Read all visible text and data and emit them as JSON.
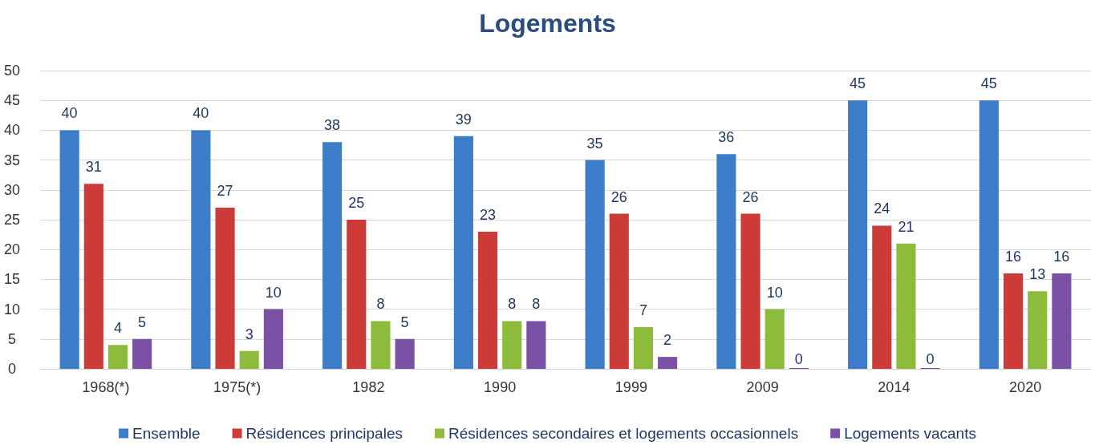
{
  "chart_data": {
    "type": "bar",
    "title": "Logements",
    "categories": [
      "1968(*)",
      "1975(*)",
      "1982",
      "1990",
      "1999",
      "2009",
      "2014",
      "2020"
    ],
    "series": [
      {
        "name": "Ensemble",
        "color": "#3d7cc9",
        "values": [
          40,
          40,
          38,
          39,
          35,
          36,
          45,
          45
        ]
      },
      {
        "name": "Résidences principales",
        "color": "#cc3b37",
        "values": [
          31,
          27,
          25,
          23,
          26,
          26,
          24,
          16
        ]
      },
      {
        "name": "Résidences secondaires et logements occasionnels",
        "color": "#8dbb3c",
        "values": [
          4,
          3,
          8,
          8,
          7,
          10,
          21,
          13
        ]
      },
      {
        "name": "Logements vacants",
        "color": "#7b51a6",
        "values": [
          5,
          10,
          5,
          8,
          2,
          0,
          0,
          16
        ]
      }
    ],
    "ylim": [
      0,
      50
    ],
    "yticks": [
      0,
      5,
      10,
      15,
      20,
      25,
      30,
      35,
      40,
      45,
      50
    ],
    "grid": "y",
    "legend": "bottom",
    "data_labels": true
  }
}
